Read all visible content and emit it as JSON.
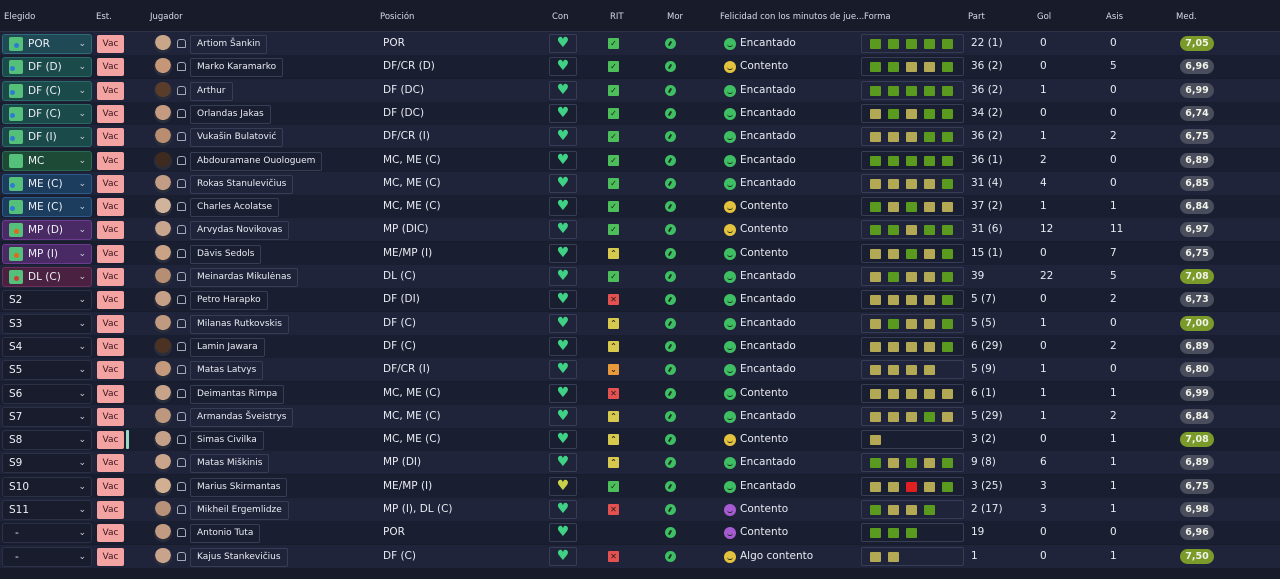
{
  "headers": {
    "elegido": "Elegido",
    "est": "Est.",
    "jugador": "Jugador",
    "posicion": "Posición",
    "con": "Con",
    "rit": "RIT",
    "mor": "Mor",
    "felicidad": "Felicidad con los minutos de jue...",
    "forma": "Forma",
    "part": "Part",
    "gol": "Gol",
    "asis": "Asis",
    "med": "Med."
  },
  "colors": {
    "vac_bg": "#f4a3a3",
    "rit_ok": "#4cbf5b",
    "rit_up": "#d7c94e",
    "rit_mid": "#e89a3a",
    "rit_bad": "#e55050",
    "form_green": "#5a9a1e",
    "form_olive": "#b3a853",
    "form_red": "#e02020",
    "fel_green": "#3fbf63",
    "fel_yellow": "#e3c23e",
    "fel_purple": "#a75bd3",
    "med_green": "#7a9a2a",
    "med_gray": "#4a4d5c"
  },
  "rows": [
    {
      "sel": "POR",
      "sel_style": "por",
      "est": "Vac",
      "name": "Artiom Šankin",
      "face": "#c9a58a",
      "pos": "POR",
      "con": "heart",
      "rit": "ok",
      "fel": "Encantado",
      "fel_color": "green",
      "form": [
        "g",
        "g",
        "g",
        "g",
        "g"
      ],
      "part": "22 (1)",
      "gol": "0",
      "asis": "0",
      "med": "7,05",
      "med_color": "green"
    },
    {
      "sel": "DF (D)",
      "sel_style": "df",
      "est": "Vac",
      "name": "Marko Karamarko",
      "face": "#c59677",
      "pos": "DF/CR (D)",
      "con": "heart",
      "rit": "ok",
      "fel": "Contento",
      "fel_color": "yellow",
      "form": [
        "g",
        "g",
        "o",
        "o",
        "g"
      ],
      "part": "36 (2)",
      "gol": "0",
      "asis": "5",
      "med": "6,96",
      "med_color": "gray"
    },
    {
      "sel": "DF (C)",
      "sel_style": "df",
      "est": "Vac",
      "name": "Arthur",
      "face": "#5a3c2b",
      "pos": "DF (DC)",
      "con": "heart",
      "rit": "ok",
      "fel": "Encantado",
      "fel_color": "green",
      "form": [
        "g",
        "g",
        "g",
        "g",
        "g"
      ],
      "part": "36 (2)",
      "gol": "1",
      "asis": "0",
      "med": "6,99",
      "med_color": "gray"
    },
    {
      "sel": "DF (C)",
      "sel_style": "df",
      "est": "Vac",
      "name": "Orlandas Jakas",
      "face": "#c49a80",
      "pos": "DF (DC)",
      "con": "heart",
      "rit": "ok",
      "fel": "Encantado",
      "fel_color": "green",
      "form": [
        "o",
        "g",
        "o",
        "g",
        "g"
      ],
      "part": "34 (2)",
      "gol": "0",
      "asis": "0",
      "med": "6,74",
      "med_color": "gray"
    },
    {
      "sel": "DF (I)",
      "sel_style": "df",
      "est": "Vac",
      "name": "Vukašin Bulatović",
      "face": "#b98d70",
      "pos": "DF/CR (I)",
      "con": "heart",
      "rit": "ok",
      "fel": "Encantado",
      "fel_color": "green",
      "form": [
        "o",
        "o",
        "o",
        "g",
        "g"
      ],
      "part": "36 (2)",
      "gol": "1",
      "asis": "2",
      "med": "6,75",
      "med_color": "gray"
    },
    {
      "sel": "MC",
      "sel_style": "mc",
      "est": "Vac",
      "name": "Abdouramane Ouologuem",
      "face": "#3e2a1e",
      "pos": "MC, ME (C)",
      "con": "heart",
      "rit": "ok",
      "fel": "Encantado",
      "fel_color": "green",
      "form": [
        "g",
        "g",
        "g",
        "g",
        "g"
      ],
      "part": "36 (1)",
      "gol": "2",
      "asis": "0",
      "med": "6,89",
      "med_color": "gray"
    },
    {
      "sel": "ME (C)",
      "sel_style": "me",
      "est": "Vac",
      "name": "Rokas Stanulevičius",
      "face": "#c29c84",
      "pos": "MC, ME (C)",
      "con": "heart",
      "rit": "ok",
      "fel": "Encantado",
      "fel_color": "green",
      "form": [
        "o",
        "o",
        "o",
        "o",
        "g"
      ],
      "part": "31 (4)",
      "gol": "4",
      "asis": "0",
      "med": "6,85",
      "med_color": "gray"
    },
    {
      "sel": "ME (C)",
      "sel_style": "me",
      "est": "Vac",
      "name": "Charles Acolatse",
      "face": "#d0b39b",
      "pos": "MC, ME (C)",
      "con": "heart",
      "rit": "ok",
      "fel": "Contento",
      "fel_color": "yellow",
      "form": [
        "g",
        "o",
        "g",
        "o",
        "o"
      ],
      "part": "37 (2)",
      "gol": "1",
      "asis": "1",
      "med": "6,84",
      "med_color": "gray"
    },
    {
      "sel": "MP (D)",
      "sel_style": "mp",
      "est": "Vac",
      "name": "Arvydas Novikovas",
      "face": "#c8a68e",
      "pos": "MP (DIC)",
      "con": "heart",
      "rit": "ok",
      "fel": "Contento",
      "fel_color": "yellow",
      "form": [
        "g",
        "g",
        "o",
        "g",
        "g"
      ],
      "part": "31 (6)",
      "gol": "12",
      "asis": "11",
      "med": "6,97",
      "med_color": "gray"
    },
    {
      "sel": "MP (I)",
      "sel_style": "mp",
      "est": "Vac",
      "name": "Dāvis Sedols",
      "face": "#caa387",
      "pos": "ME/MP (I)",
      "con": "heart",
      "rit": "up",
      "fel": "Contento",
      "fel_color": "green",
      "form": [
        "o",
        "o",
        "g",
        "o",
        "g"
      ],
      "part": "15 (1)",
      "gol": "0",
      "asis": "7",
      "med": "6,75",
      "med_color": "gray"
    },
    {
      "sel": "DL (C)",
      "sel_style": "dl",
      "est": "Vac",
      "name": "Meinardas Mikulėnas",
      "face": "#b58e74",
      "pos": "DL (C)",
      "con": "heart",
      "rit": "ok",
      "fel": "Encantado",
      "fel_color": "green",
      "form": [
        "o",
        "g",
        "o",
        "o",
        "g"
      ],
      "part": "39",
      "gol": "22",
      "asis": "5",
      "med": "7,08",
      "med_color": "green"
    },
    {
      "sel": "S2",
      "sel_style": "sub",
      "est": "Vac",
      "name": "Petro Harapko",
      "face": "#c6a086",
      "pos": "DF (DI)",
      "con": "heart",
      "rit": "bad",
      "fel": "Encantado",
      "fel_color": "green",
      "form": [
        "o",
        "o",
        "o",
        "o",
        "g"
      ],
      "part": "5 (7)",
      "gol": "0",
      "asis": "2",
      "med": "6,73",
      "med_color": "gray"
    },
    {
      "sel": "S3",
      "sel_style": "sub",
      "est": "Vac",
      "name": "Milanas Rutkovskis",
      "face": "#c09a80",
      "pos": "DF (C)",
      "con": "heart",
      "rit": "up",
      "fel": "Encantado",
      "fel_color": "green",
      "form": [
        "o",
        "g",
        "o",
        "o",
        "g"
      ],
      "part": "5 (5)",
      "gol": "1",
      "asis": "0",
      "med": "7,00",
      "med_color": "green"
    },
    {
      "sel": "S4",
      "sel_style": "sub",
      "est": "Vac",
      "name": "Lamin Jawara",
      "face": "#4b3222",
      "pos": "DF (C)",
      "con": "heart",
      "rit": "up",
      "fel": "Encantado",
      "fel_color": "green",
      "form": [
        "o",
        "o",
        "o",
        "o",
        "g"
      ],
      "part": "6 (29)",
      "gol": "0",
      "asis": "2",
      "med": "6,89",
      "med_color": "gray"
    },
    {
      "sel": "S5",
      "sel_style": "sub",
      "est": "Vac",
      "name": "Matas Latvys",
      "face": "#c59a7c",
      "pos": "DF/CR (I)",
      "con": "heart",
      "rit": "mid",
      "fel": "Encantado",
      "fel_color": "green",
      "form": [
        "o",
        "o",
        "o",
        "o"
      ],
      "part": "5 (9)",
      "gol": "1",
      "asis": "0",
      "med": "6,80",
      "med_color": "gray"
    },
    {
      "sel": "S6",
      "sel_style": "sub",
      "est": "Vac",
      "name": "Deimantas Rimpa",
      "face": "#c7a38a",
      "pos": "MC, ME (C)",
      "con": "heart",
      "rit": "bad",
      "fel": "Contento",
      "fel_color": "green",
      "form": [
        "o",
        "o",
        "o",
        "o",
        "o"
      ],
      "part": "6 (1)",
      "gol": "1",
      "asis": "1",
      "med": "6,99",
      "med_color": "gray"
    },
    {
      "sel": "S7",
      "sel_style": "sub",
      "est": "Vac",
      "name": "Armandas Šveistrys",
      "face": "#bd987f",
      "pos": "MC, ME (C)",
      "con": "heart",
      "rit": "up",
      "fel": "Encantado",
      "fel_color": "green",
      "form": [
        "o",
        "o",
        "o",
        "g",
        "o"
      ],
      "part": "5 (29)",
      "gol": "1",
      "asis": "2",
      "med": "6,84",
      "med_color": "gray"
    },
    {
      "sel": "S8",
      "sel_style": "sub",
      "est": "Vac",
      "name": "Simas Civilka",
      "face": "#c4a088",
      "pos": "MC, ME (C)",
      "con": "heart",
      "rit": "up",
      "fel": "Contento",
      "fel_color": "yellow",
      "form": [
        "o"
      ],
      "part": "3 (2)",
      "gol": "0",
      "asis": "1",
      "med": "7,08",
      "med_color": "green",
      "bar": true
    },
    {
      "sel": "S9",
      "sel_style": "sub",
      "est": "Vac",
      "name": "Matas Miškinis",
      "face": "#caa58b",
      "pos": "MP (DI)",
      "con": "heart",
      "rit": "up",
      "fel": "Encantado",
      "fel_color": "green",
      "form": [
        "g",
        "o",
        "g",
        "o",
        "g"
      ],
      "part": "9 (8)",
      "gol": "6",
      "asis": "1",
      "med": "6,89",
      "med_color": "gray"
    },
    {
      "sel": "S10",
      "sel_style": "sub",
      "est": "Vac",
      "name": "Marius Skirmantas",
      "face": "#d2ae92",
      "pos": "ME/MP (I)",
      "con": "heart_y",
      "rit": "ok",
      "fel": "Encantado",
      "fel_color": "green",
      "form": [
        "o",
        "o",
        "r",
        "o",
        "g"
      ],
      "part": "3 (25)",
      "gol": "3",
      "asis": "1",
      "med": "6,75",
      "med_color": "gray"
    },
    {
      "sel": "S11",
      "sel_style": "sub",
      "est": "Vac",
      "name": "Mikheil Ergemlidze",
      "face": "#b89278",
      "pos": "MP (I), DL (C)",
      "con": "heart",
      "rit": "bad",
      "fel": "Contento",
      "fel_color": "purple",
      "form": [
        "g",
        "o",
        "o",
        "g"
      ],
      "part": "2 (17)",
      "gol": "3",
      "asis": "1",
      "med": "6,98",
      "med_color": "gray"
    },
    {
      "sel": "-",
      "sel_style": "dash",
      "est": "Vac",
      "name": "Antonio Tuta",
      "face": "#c19b81",
      "pos": "POR",
      "con": "heart",
      "rit": "none",
      "fel": "Contento",
      "fel_color": "purple",
      "form": [
        "g",
        "g",
        "g"
      ],
      "part": "19",
      "gol": "0",
      "asis": "0",
      "med": "6,96",
      "med_color": "gray"
    },
    {
      "sel": "-",
      "sel_style": "dash",
      "est": "Vac",
      "name": "Kajus Stankevičius",
      "face": "#c7a48b",
      "pos": "DF (C)",
      "con": "heart",
      "rit": "bad",
      "fel": "Algo contento",
      "fel_color": "yellow",
      "form": [
        "o",
        "o"
      ],
      "part": "1",
      "gol": "0",
      "asis": "1",
      "med": "7,50",
      "med_color": "green"
    }
  ]
}
